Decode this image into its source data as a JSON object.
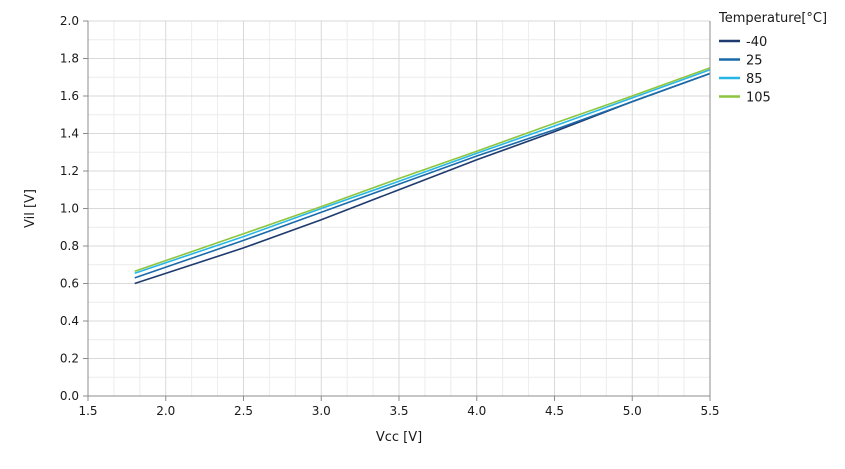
{
  "chart_data": {
    "type": "line",
    "xlabel": "Vcc [V]",
    "ylabel": "Vil [V]",
    "xlim": [
      1.5,
      5.5
    ],
    "ylim": [
      0.0,
      2.0
    ],
    "xticks": [
      "1.5",
      "2.0",
      "2.5",
      "3.0",
      "3.5",
      "4.0",
      "4.5",
      "5.0",
      "5.5"
    ],
    "yticks": [
      "0.0",
      "0.2",
      "0.4",
      "0.6",
      "0.8",
      "1.0",
      "1.2",
      "1.4",
      "1.6",
      "1.8",
      "2.0"
    ],
    "grid": true,
    "legend": {
      "title": "Temperature[°C]",
      "placement": "right"
    },
    "series": [
      {
        "name": "-40",
        "color": "#1f3a6e",
        "x": [
          1.8,
          2.5,
          3.0,
          3.5,
          4.0,
          4.5,
          5.0,
          5.5
        ],
        "y": [
          0.6,
          0.79,
          0.94,
          1.1,
          1.26,
          1.41,
          1.57,
          1.72
        ]
      },
      {
        "name": "25",
        "color": "#1a6aaa",
        "x": [
          1.8,
          2.5,
          3.0,
          3.5,
          4.0,
          4.5,
          5.0,
          5.5
        ],
        "y": [
          0.63,
          0.83,
          0.98,
          1.13,
          1.28,
          1.42,
          1.57,
          1.72
        ]
      },
      {
        "name": "85",
        "color": "#27b6e6",
        "x": [
          1.8,
          2.5,
          3.0,
          3.5,
          4.0,
          4.5,
          5.0,
          5.5
        ],
        "y": [
          0.655,
          0.85,
          1.0,
          1.145,
          1.295,
          1.44,
          1.59,
          1.74
        ]
      },
      {
        "name": "105",
        "color": "#8cc63f",
        "x": [
          1.8,
          2.5,
          3.0,
          3.5,
          4.0,
          4.5,
          5.0,
          5.5
        ],
        "y": [
          0.665,
          0.865,
          1.01,
          1.16,
          1.305,
          1.455,
          1.6,
          1.75
        ]
      }
    ]
  }
}
